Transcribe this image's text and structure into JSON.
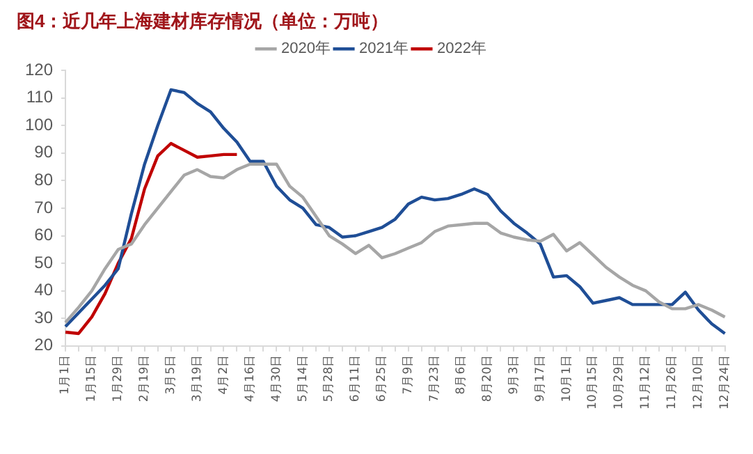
{
  "chart_data": {
    "type": "line",
    "title": "图4：近几年上海建材库存情况（单位：万吨）",
    "categories": [
      "1月1日",
      null,
      "1月15日",
      null,
      "1月29日",
      null,
      "2月19日",
      null,
      "3月5日",
      null,
      "3月19日",
      null,
      "4月2日",
      null,
      "4月16日",
      null,
      "4月30日",
      null,
      "5月14日",
      null,
      "5月28日",
      null,
      "6月11日",
      null,
      "6月25日",
      null,
      "7月9日",
      null,
      "7月23日",
      null,
      "8月6日",
      null,
      "8月20日",
      null,
      "9月3日",
      null,
      "9月17日",
      null,
      "10月1日",
      null,
      "10月15日",
      null,
      "10月29日",
      null,
      "11月12日",
      null,
      "11月26日",
      null,
      "12月10日",
      null,
      "12月24日"
    ],
    "series": [
      {
        "name": "2020年",
        "color": "#a6a6a6",
        "values": [
          28.5,
          34,
          40,
          48,
          55,
          57,
          64,
          70,
          76,
          82,
          84,
          81.5,
          81,
          84,
          86,
          86,
          86,
          78,
          74,
          67,
          60,
          57,
          53.5,
          56.5,
          52,
          53.5,
          55.5,
          57.5,
          61.5,
          63.5,
          64,
          64.5,
          64.5,
          61,
          59.5,
          58.5,
          58,
          60.5,
          54.5,
          57.5,
          53,
          48.5,
          45,
          42,
          40,
          36,
          33.5,
          33.5,
          35,
          33,
          30.5
        ]
      },
      {
        "name": "2021年",
        "color": "#1f4e96",
        "values": [
          27,
          32,
          37,
          42,
          48,
          68,
          86,
          100,
          113,
          112,
          108,
          105,
          99,
          94,
          87,
          87,
          78,
          73,
          70,
          64,
          63,
          59.5,
          60,
          61.5,
          63,
          66,
          71.5,
          74,
          73,
          73.5,
          75,
          77,
          75,
          69,
          64.5,
          61,
          57,
          45,
          45.5,
          41.5,
          35.5,
          36.5,
          37.5,
          35,
          35,
          35,
          35,
          39.5,
          33,
          28,
          24.5
        ]
      },
      {
        "name": "2022年",
        "color": "#c00000",
        "values": [
          25,
          24.5,
          30.5,
          39,
          50,
          59,
          77,
          89,
          93.5,
          91,
          88.5,
          89,
          89.5,
          89.5,
          null,
          null,
          null,
          null,
          null,
          null,
          null,
          null,
          null,
          null,
          null,
          null,
          null,
          null,
          null,
          null,
          null,
          null,
          null,
          null,
          null,
          null,
          null,
          null,
          null,
          null,
          null,
          null,
          null,
          null,
          null,
          null,
          null,
          null,
          null,
          null,
          null
        ]
      }
    ],
    "ylim": [
      20,
      120
    ],
    "yticks": [
      20,
      30,
      40,
      50,
      60,
      70,
      80,
      90,
      100,
      110,
      120
    ],
    "grid": false,
    "legend": "top",
    "line_style": "solid"
  }
}
